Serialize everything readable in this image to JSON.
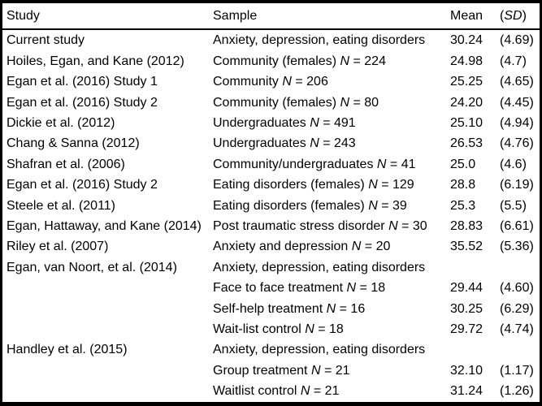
{
  "table": {
    "columns": [
      {
        "label_parts": [
          {
            "text": "Study"
          }
        ]
      },
      {
        "label_parts": [
          {
            "text": "Sample"
          }
        ]
      },
      {
        "label_parts": [
          {
            "text": "Mean"
          }
        ]
      },
      {
        "label_parts": [
          {
            "text": "("
          },
          {
            "text": "SD",
            "italic": true
          },
          {
            "text": ")"
          }
        ]
      }
    ],
    "rows": [
      {
        "study": "Current study",
        "sample_parts": [
          {
            "text": "Anxiety, depression, eating disorders"
          }
        ],
        "mean": "30.24",
        "sd": "(4.69)"
      },
      {
        "study": "Hoiles, Egan, and Kane (2012)",
        "sample_parts": [
          {
            "text": "Community (females) "
          },
          {
            "text": "N",
            "italic": true
          },
          {
            "text": " = 224"
          }
        ],
        "mean": "24.98",
        "sd": "(4.7)"
      },
      {
        "study": "Egan et al. (2016) Study 1",
        "sample_parts": [
          {
            "text": "Community "
          },
          {
            "text": "N",
            "italic": true
          },
          {
            "text": " = 206"
          }
        ],
        "mean": "25.25",
        "sd": "(4.65)"
      },
      {
        "study": "Egan et al. (2016) Study 2",
        "sample_parts": [
          {
            "text": "Community (females) "
          },
          {
            "text": "N",
            "italic": true
          },
          {
            "text": " = 80"
          }
        ],
        "mean": "24.20",
        "sd": "(4.45)"
      },
      {
        "study": "Dickie et al. (2012)",
        "sample_parts": [
          {
            "text": "Undergraduates "
          },
          {
            "text": "N",
            "italic": true
          },
          {
            "text": " = 491"
          }
        ],
        "mean": "25.10",
        "sd": "(4.94)"
      },
      {
        "study": "Chang & Sanna (2012)",
        "sample_parts": [
          {
            "text": "Undergraduates "
          },
          {
            "text": "N",
            "italic": true
          },
          {
            "text": " = 243"
          }
        ],
        "mean": "26.53",
        "sd": "(4.76)"
      },
      {
        "study": "Shafran et al. (2006)",
        "sample_parts": [
          {
            "text": "Community/undergraduates "
          },
          {
            "text": "N",
            "italic": true
          },
          {
            "text": " = 41"
          }
        ],
        "mean": "25.0",
        "sd": "(4.6)"
      },
      {
        "study": "Egan et al. (2016) Study 2",
        "sample_parts": [
          {
            "text": "Eating disorders (females) "
          },
          {
            "text": "N",
            "italic": true
          },
          {
            "text": " = 129"
          }
        ],
        "mean": "28.8",
        "sd": "(6.19)"
      },
      {
        "study": "Steele et al. (2011)",
        "sample_parts": [
          {
            "text": "Eating disorders (females) "
          },
          {
            "text": "N",
            "italic": true
          },
          {
            "text": " = 39"
          }
        ],
        "mean": "25.3",
        "sd": "(5.5)"
      },
      {
        "study": "Egan, Hattaway, and Kane (2014)",
        "sample_parts": [
          {
            "text": "Post traumatic stress disorder "
          },
          {
            "text": "N",
            "italic": true
          },
          {
            "text": " = 30"
          }
        ],
        "mean": "28.83",
        "sd": "(6.61)"
      },
      {
        "study": "Riley et al. (2007)",
        "sample_parts": [
          {
            "text": "Anxiety and depression "
          },
          {
            "text": "N",
            "italic": true
          },
          {
            "text": " = 20"
          }
        ],
        "mean": "35.52",
        "sd": "(5.36)"
      },
      {
        "study": "Egan, van Noort, et al. (2014)",
        "sample_parts": [
          {
            "text": "Anxiety, depression, eating disorders"
          }
        ],
        "mean": "",
        "sd": ""
      },
      {
        "study": "",
        "sample_parts": [
          {
            "text": "Face to face treatment "
          },
          {
            "text": "N",
            "italic": true
          },
          {
            "text": " = 18"
          }
        ],
        "mean": "29.44",
        "sd": "(4.60)"
      },
      {
        "study": "",
        "sample_parts": [
          {
            "text": "Self-help treatment "
          },
          {
            "text": "N",
            "italic": true
          },
          {
            "text": " = 16"
          }
        ],
        "mean": "30.25",
        "sd": "(6.29)"
      },
      {
        "study": "",
        "sample_parts": [
          {
            "text": "Wait-list control "
          },
          {
            "text": "N",
            "italic": true
          },
          {
            "text": " = 18"
          }
        ],
        "mean": "29.72",
        "sd": "(4.74)"
      },
      {
        "study": "Handley et al. (2015)",
        "sample_parts": [
          {
            "text": "Anxiety, depression, eating disorders"
          }
        ],
        "mean": "",
        "sd": ""
      },
      {
        "study": "",
        "sample_parts": [
          {
            "text": "Group treatment "
          },
          {
            "text": "N",
            "italic": true
          },
          {
            "text": " = 21"
          }
        ],
        "mean": "32.10",
        "sd": "(1.17)"
      },
      {
        "study": "",
        "sample_parts": [
          {
            "text": "Waitlist control "
          },
          {
            "text": "N",
            "italic": true
          },
          {
            "text": " = 21"
          }
        ],
        "mean": "31.24",
        "sd": "(1.26)"
      }
    ]
  }
}
